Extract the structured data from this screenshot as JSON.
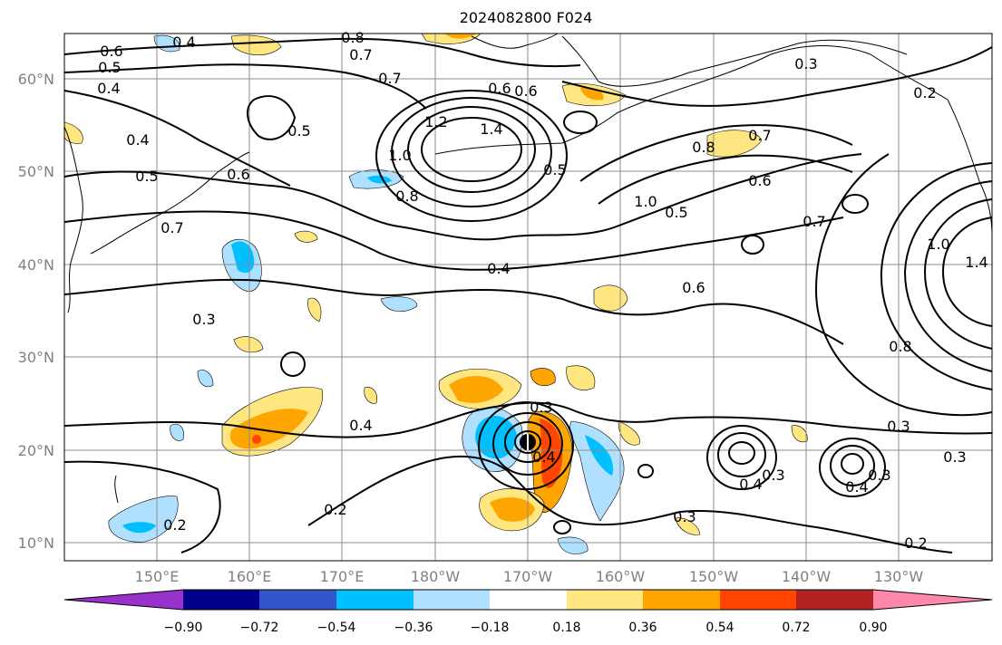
{
  "title": "2024082800 F024",
  "lat_ticks": [
    "10°N",
    "20°N",
    "30°N",
    "40°N",
    "50°N",
    "60°N"
  ],
  "lon_ticks": [
    "150°E",
    "160°E",
    "170°E",
    "180°W",
    "170°W",
    "160°W",
    "150°W",
    "140°W",
    "130°W"
  ],
  "colorbar": {
    "ticks": [
      "−0.90",
      "−0.72",
      "−0.54",
      "−0.36",
      "−0.18",
      "0.18",
      "0.36",
      "0.54",
      "0.72",
      "0.90"
    ],
    "colors": [
      "#9932cc",
      "#00008b",
      "#3355cc",
      "#00bfff",
      "#b0e0ff",
      "#ffffff",
      "#ffe680",
      "#ffa500",
      "#ff4500",
      "#b22222",
      "#ff88aa"
    ]
  },
  "contour_labels": [
    "0.6",
    "0.5",
    "0.4",
    "0.8",
    "0.7",
    "0.7",
    "0.6",
    "0.4",
    "0.5",
    "0.6",
    "0.5",
    "0.7",
    "0.3",
    "0.4",
    "0.2",
    "0.2",
    "0.3",
    "0.4",
    "0.8",
    "0.6",
    "1.0",
    "1.2",
    "1.4",
    "0.5",
    "1.0",
    "0.5",
    "0.6",
    "0.8",
    "0.7",
    "0.4",
    "0.6",
    "0.3",
    "0.3",
    "0.4",
    "0.3",
    "0.3",
    "0.4",
    "0.3",
    "0.3",
    "0.2",
    "0.7",
    "0.8",
    "1.0",
    "1.4",
    "0.2",
    "0.4"
  ]
}
